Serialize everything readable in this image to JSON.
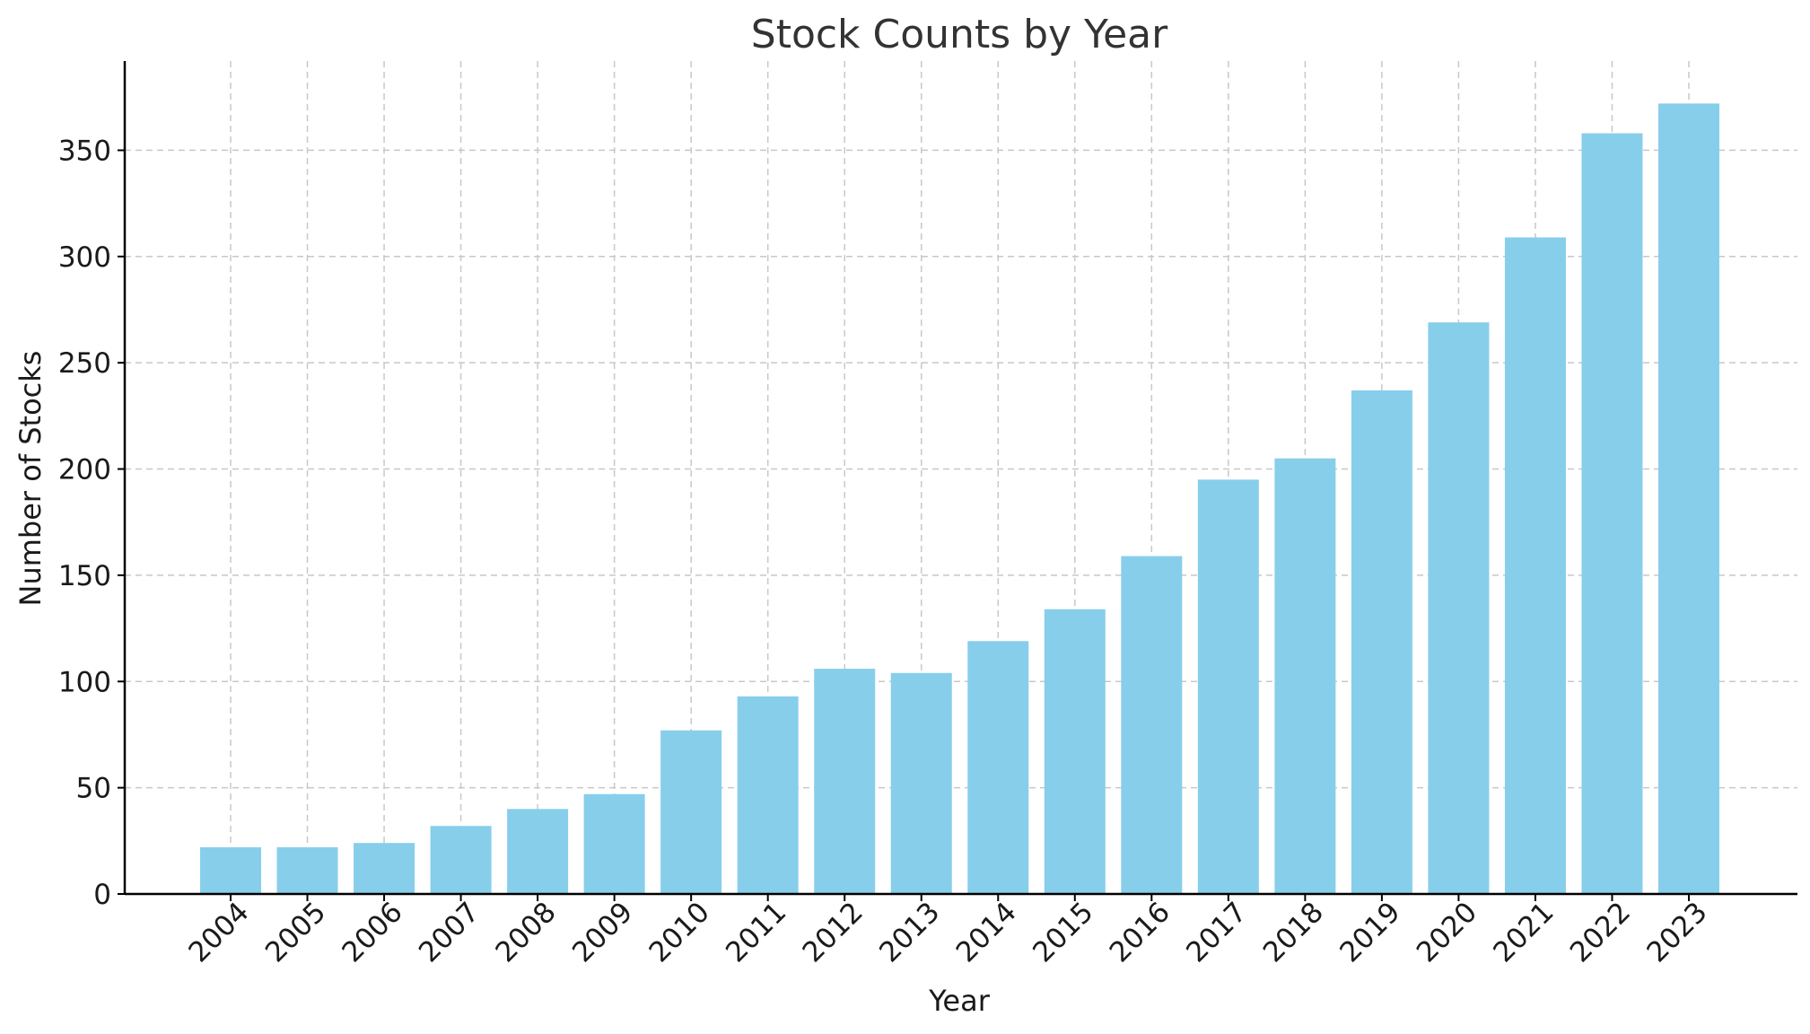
{
  "chart_data": {
    "type": "bar",
    "title": "Stock Counts by Year",
    "xlabel": "Year",
    "ylabel": "Number of Stocks",
    "categories": [
      "2004",
      "2005",
      "2006",
      "2007",
      "2008",
      "2009",
      "2010",
      "2011",
      "2012",
      "2013",
      "2014",
      "2015",
      "2016",
      "2017",
      "2018",
      "2019",
      "2020",
      "2021",
      "2022",
      "2023"
    ],
    "values": [
      22,
      22,
      24,
      32,
      40,
      47,
      77,
      93,
      106,
      104,
      119,
      134,
      159,
      195,
      205,
      237,
      269,
      309,
      358,
      372
    ],
    "ylim": [
      0,
      392
    ],
    "yticks": [
      0,
      50,
      100,
      150,
      200,
      250,
      300,
      350
    ],
    "grid": true,
    "bar_color": "#87CEEB",
    "grid_color": "#c8c8c8",
    "axis_color": "#000000"
  }
}
